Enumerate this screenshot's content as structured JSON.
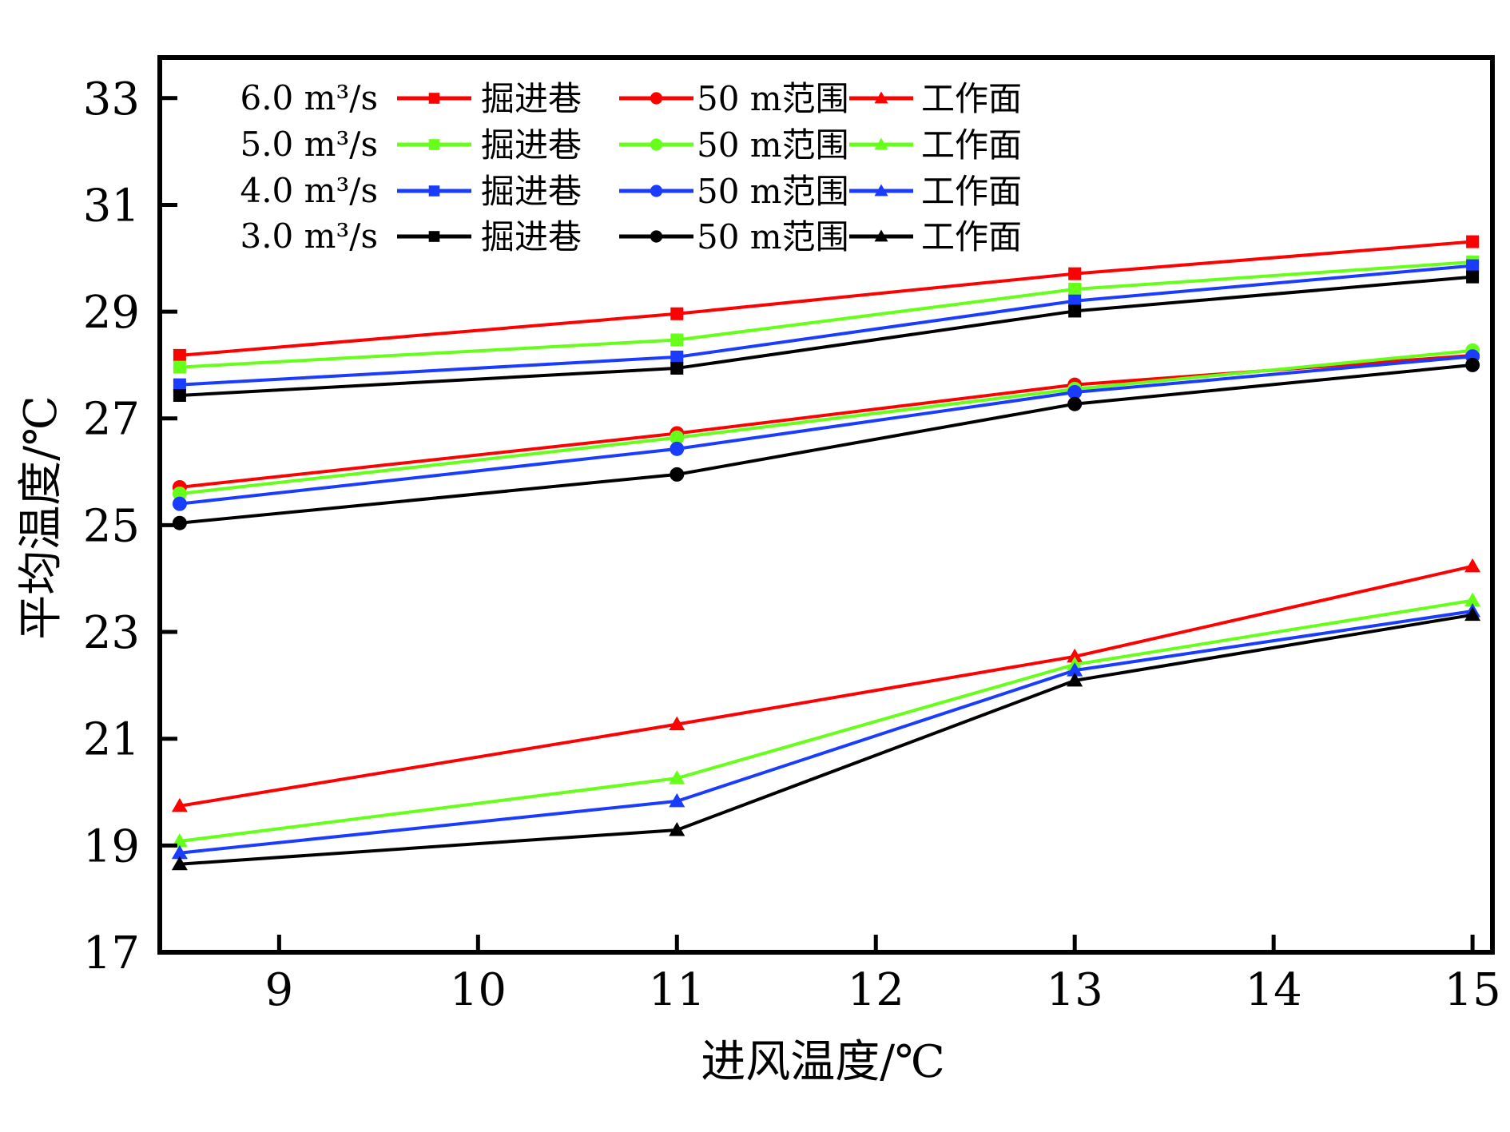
{
  "chart_data": {
    "type": "line",
    "title": "",
    "xlabel": "进风温度/℃",
    "ylabel": "平均温度/℃",
    "xlim": [
      8.4,
      15.1
    ],
    "ylim": [
      17,
      33.76
    ],
    "xticks": [
      9,
      10,
      11,
      12,
      13,
      14,
      15
    ],
    "yticks": [
      17,
      19,
      21,
      23,
      25,
      27,
      29,
      31,
      33
    ],
    "xtick_labels": [
      "9",
      "10",
      "11",
      "12",
      "13",
      "14",
      "15"
    ],
    "ytick_labels": [
      "17",
      "19",
      "21",
      "23",
      "25",
      "27",
      "29",
      "31",
      "33"
    ],
    "grid": false,
    "legend_position": "top-left",
    "x": [
      8.5,
      11,
      13,
      15
    ],
    "flow_rates": [
      {
        "label": "6.0 m³/s",
        "color": "#ff0000"
      },
      {
        "label": "5.0 m³/s",
        "color": "#66ff1a"
      },
      {
        "label": "4.0 m³/s",
        "color": "#1a3cff"
      },
      {
        "label": "3.0 m³/s",
        "color": "#000000"
      }
    ],
    "locations": [
      {
        "label": "掘进巷",
        "marker": "square"
      },
      {
        "label": "50 m范围",
        "marker": "circle"
      },
      {
        "label": "工作面",
        "marker": "triangle"
      }
    ],
    "series": [
      {
        "name": "6.0 m³/s 掘进巷",
        "flow": 0,
        "location": 0,
        "values": [
          28.18,
          28.96,
          29.71,
          30.31
        ]
      },
      {
        "name": "5.0 m³/s 掘进巷",
        "flow": 1,
        "location": 0,
        "values": [
          27.96,
          28.47,
          29.42,
          29.93
        ]
      },
      {
        "name": "4.0 m³/s 掘进巷",
        "flow": 2,
        "location": 0,
        "values": [
          27.63,
          28.15,
          29.2,
          29.86
        ]
      },
      {
        "name": "3.0 m³/s 掘进巷",
        "flow": 3,
        "location": 0,
        "values": [
          27.43,
          27.94,
          29.01,
          29.65
        ]
      },
      {
        "name": "6.0 m³/s 50 m范围",
        "flow": 0,
        "location": 1,
        "values": [
          25.71,
          26.72,
          27.63,
          28.18
        ]
      },
      {
        "name": "5.0 m³/s 50 m范围",
        "flow": 1,
        "location": 1,
        "values": [
          25.59,
          26.64,
          27.55,
          28.27
        ]
      },
      {
        "name": "4.0 m³/s 50 m范围",
        "flow": 2,
        "location": 1,
        "values": [
          25.4,
          26.43,
          27.49,
          28.16
        ]
      },
      {
        "name": "3.0 m³/s 50 m范围",
        "flow": 3,
        "location": 1,
        "values": [
          25.04,
          25.95,
          27.27,
          28.0
        ]
      },
      {
        "name": "6.0 m³/s 工作面",
        "flow": 0,
        "location": 2,
        "values": [
          19.74,
          21.27,
          22.54,
          24.23
        ]
      },
      {
        "name": "5.0 m³/s 工作面",
        "flow": 1,
        "location": 2,
        "values": [
          19.08,
          20.26,
          22.39,
          23.59
        ]
      },
      {
        "name": "4.0 m³/s 工作面",
        "flow": 2,
        "location": 2,
        "values": [
          18.86,
          19.83,
          22.28,
          23.39
        ]
      },
      {
        "name": "3.0 m³/s 工作面",
        "flow": 3,
        "location": 2,
        "values": [
          18.65,
          19.29,
          22.09,
          23.32
        ]
      }
    ]
  }
}
